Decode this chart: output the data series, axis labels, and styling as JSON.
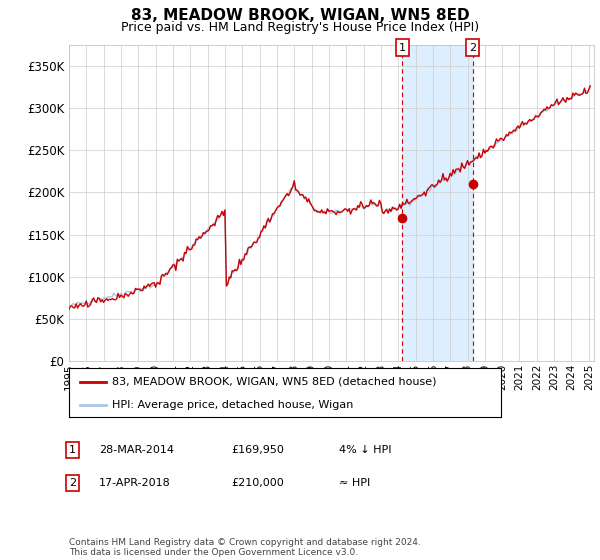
{
  "title": "83, MEADOW BROOK, WIGAN, WN5 8ED",
  "subtitle": "Price paid vs. HM Land Registry's House Price Index (HPI)",
  "ylabel_ticks": [
    "£0",
    "£50K",
    "£100K",
    "£150K",
    "£200K",
    "£250K",
    "£300K",
    "£350K"
  ],
  "ytick_values": [
    0,
    50000,
    100000,
    150000,
    200000,
    250000,
    300000,
    350000
  ],
  "ylim": [
    0,
    375000
  ],
  "legend_line1": "83, MEADOW BROOK, WIGAN, WN5 8ED (detached house)",
  "legend_line2": "HPI: Average price, detached house, Wigan",
  "annotation1_label": "1",
  "annotation1_date": "28-MAR-2014",
  "annotation1_price": "£169,950",
  "annotation1_hpi": "4% ↓ HPI",
  "annotation2_label": "2",
  "annotation2_date": "17-APR-2018",
  "annotation2_price": "£210,000",
  "annotation2_hpi": "≈ HPI",
  "footer": "Contains HM Land Registry data © Crown copyright and database right 2024.\nThis data is licensed under the Open Government Licence v3.0.",
  "hpi_color": "#a8c8e8",
  "price_color": "#cc0000",
  "shade_color": "#ddeeff",
  "dashed_line_color": "#cc0000",
  "background_color": "#ffffff",
  "grid_color": "#cccccc",
  "sale1_x": 2014.23,
  "sale1_y": 169950,
  "sale2_x": 2018.29,
  "sale2_y": 210000,
  "xlim_left": 1995,
  "xlim_right": 2025.3
}
